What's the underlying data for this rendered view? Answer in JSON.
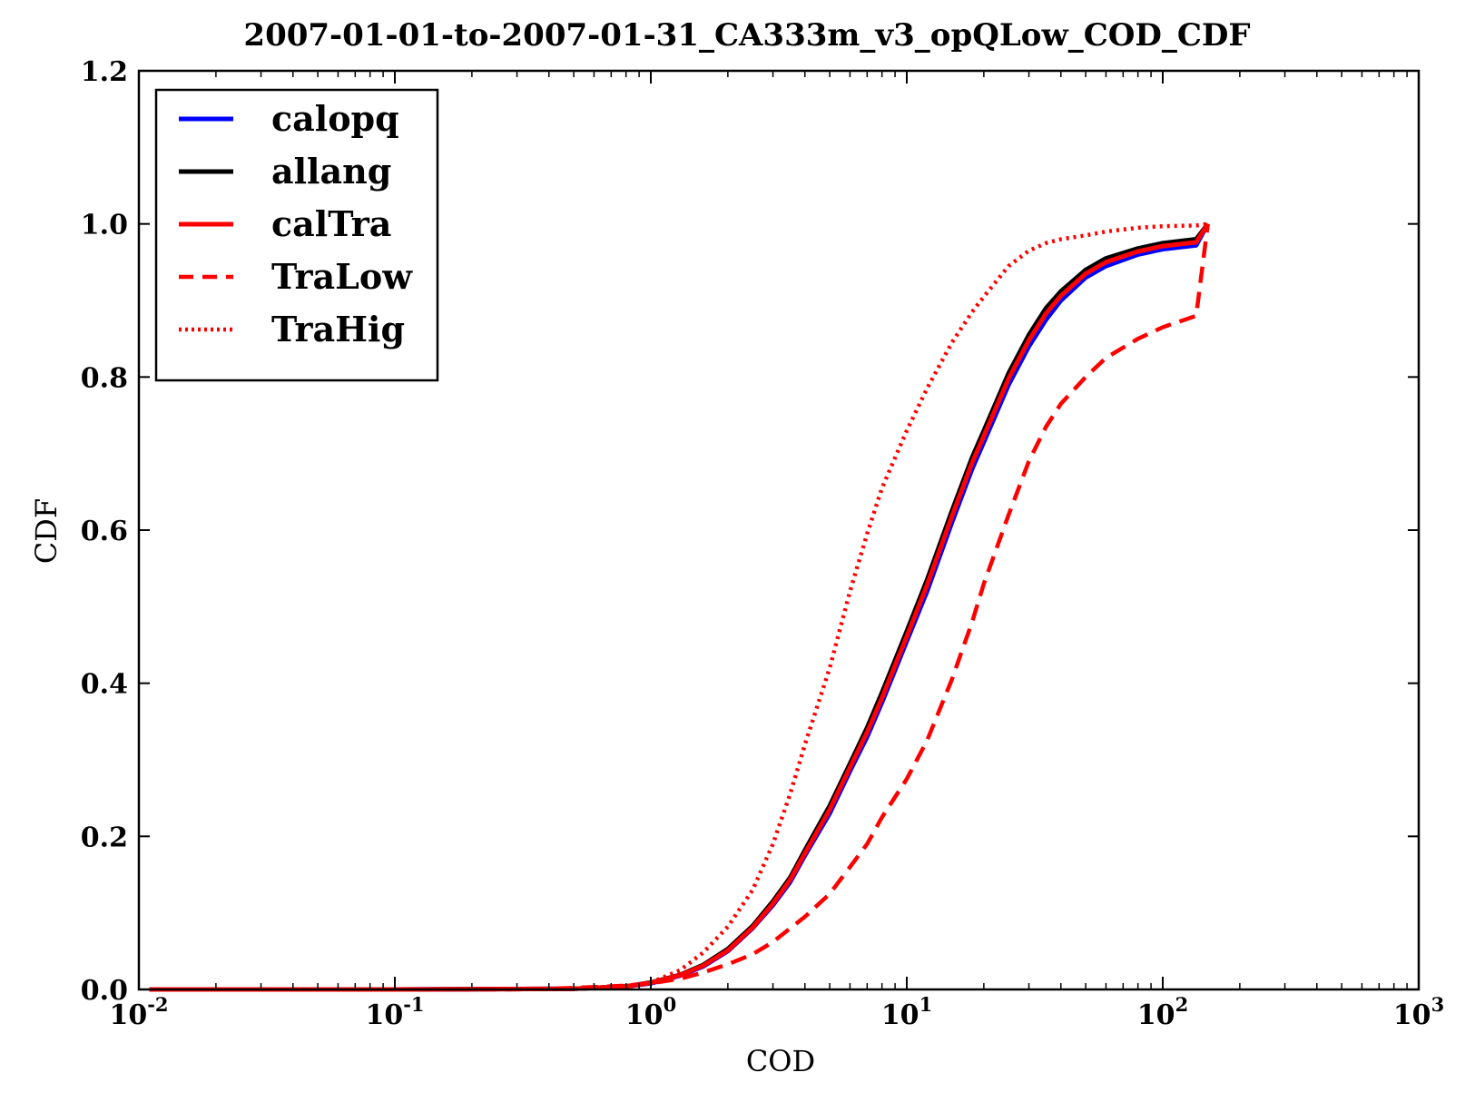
{
  "chart_data": {
    "type": "line",
    "title": "2007-01-01-to-2007-01-31_CA333m_v3_opQLow_COD_CDF",
    "xlabel": "COD",
    "ylabel": "CDF",
    "xscale": "log",
    "xlim": [
      0.01,
      1000
    ],
    "ylim": [
      0.0,
      1.2
    ],
    "grid": false,
    "legend_position": "top-left",
    "x_ticks": [
      {
        "value": 0.01,
        "base": "10",
        "exp": "-2"
      },
      {
        "value": 0.1,
        "base": "10",
        "exp": "-1"
      },
      {
        "value": 1,
        "base": "10",
        "exp": "0"
      },
      {
        "value": 10,
        "base": "10",
        "exp": "1"
      },
      {
        "value": 100,
        "base": "10",
        "exp": "2"
      },
      {
        "value": 1000,
        "base": "10",
        "exp": "3"
      }
    ],
    "y_ticks": [
      {
        "value": 0.0,
        "label": "0.0"
      },
      {
        "value": 0.2,
        "label": "0.2"
      },
      {
        "value": 0.4,
        "label": "0.4"
      },
      {
        "value": 0.6,
        "label": "0.6"
      },
      {
        "value": 0.8,
        "label": "0.8"
      },
      {
        "value": 1.0,
        "label": "1.0"
      },
      {
        "value": 1.2,
        "label": "1.2"
      }
    ],
    "series": [
      {
        "name": "calopq",
        "color": "#0000ff",
        "style": "solid",
        "points": [
          [
            0.011,
            0.0
          ],
          [
            0.1,
            0.0
          ],
          [
            0.5,
            0.001
          ],
          [
            0.8,
            0.004
          ],
          [
            1.0,
            0.008
          ],
          [
            1.3,
            0.018
          ],
          [
            1.6,
            0.03
          ],
          [
            2.0,
            0.05
          ],
          [
            2.5,
            0.08
          ],
          [
            3.0,
            0.11
          ],
          [
            3.5,
            0.14
          ],
          [
            4.0,
            0.175
          ],
          [
            5.0,
            0.23
          ],
          [
            6.0,
            0.285
          ],
          [
            7.0,
            0.33
          ],
          [
            8.0,
            0.375
          ],
          [
            10.0,
            0.455
          ],
          [
            12.0,
            0.52
          ],
          [
            15.0,
            0.61
          ],
          [
            18.0,
            0.68
          ],
          [
            20.0,
            0.715
          ],
          [
            25.0,
            0.79
          ],
          [
            30.0,
            0.84
          ],
          [
            35.0,
            0.875
          ],
          [
            40.0,
            0.9
          ],
          [
            50.0,
            0.93
          ],
          [
            60.0,
            0.945
          ],
          [
            80.0,
            0.96
          ],
          [
            100.0,
            0.967
          ],
          [
            135.0,
            0.972
          ],
          [
            150.0,
            1.0
          ]
        ]
      },
      {
        "name": "allang",
        "color": "#000000",
        "style": "solid",
        "points": [
          [
            0.011,
            0.0
          ],
          [
            0.1,
            0.0
          ],
          [
            0.5,
            0.001
          ],
          [
            0.8,
            0.004
          ],
          [
            1.0,
            0.009
          ],
          [
            1.3,
            0.019
          ],
          [
            1.6,
            0.032
          ],
          [
            2.0,
            0.053
          ],
          [
            2.5,
            0.083
          ],
          [
            3.0,
            0.115
          ],
          [
            3.5,
            0.146
          ],
          [
            4.0,
            0.182
          ],
          [
            5.0,
            0.24
          ],
          [
            6.0,
            0.295
          ],
          [
            7.0,
            0.342
          ],
          [
            8.0,
            0.388
          ],
          [
            10.0,
            0.468
          ],
          [
            12.0,
            0.535
          ],
          [
            15.0,
            0.625
          ],
          [
            18.0,
            0.695
          ],
          [
            20.0,
            0.73
          ],
          [
            25.0,
            0.805
          ],
          [
            30.0,
            0.855
          ],
          [
            35.0,
            0.89
          ],
          [
            40.0,
            0.912
          ],
          [
            50.0,
            0.94
          ],
          [
            60.0,
            0.955
          ],
          [
            80.0,
            0.968
          ],
          [
            100.0,
            0.975
          ],
          [
            135.0,
            0.98
          ],
          [
            150.0,
            1.0
          ]
        ]
      },
      {
        "name": "calTra",
        "color": "#ff0000",
        "style": "solid",
        "points": [
          [
            0.011,
            0.0
          ],
          [
            0.1,
            0.0
          ],
          [
            0.5,
            0.001
          ],
          [
            0.8,
            0.004
          ],
          [
            1.0,
            0.0085
          ],
          [
            1.3,
            0.0185
          ],
          [
            1.6,
            0.031
          ],
          [
            2.0,
            0.051
          ],
          [
            2.5,
            0.081
          ],
          [
            3.0,
            0.112
          ],
          [
            3.5,
            0.143
          ],
          [
            4.0,
            0.178
          ],
          [
            5.0,
            0.235
          ],
          [
            6.0,
            0.29
          ],
          [
            7.0,
            0.336
          ],
          [
            8.0,
            0.381
          ],
          [
            10.0,
            0.461
          ],
          [
            12.0,
            0.528
          ],
          [
            15.0,
            0.618
          ],
          [
            18.0,
            0.688
          ],
          [
            20.0,
            0.723
          ],
          [
            25.0,
            0.798
          ],
          [
            30.0,
            0.848
          ],
          [
            35.0,
            0.883
          ],
          [
            40.0,
            0.906
          ],
          [
            50.0,
            0.935
          ],
          [
            60.0,
            0.95
          ],
          [
            80.0,
            0.964
          ],
          [
            100.0,
            0.971
          ],
          [
            135.0,
            0.976
          ],
          [
            150.0,
            1.0
          ]
        ]
      },
      {
        "name": "TraLow",
        "color": "#ff0000",
        "style": "dashed",
        "points": [
          [
            0.011,
            0.0
          ],
          [
            0.1,
            0.0
          ],
          [
            0.3,
            0.0
          ],
          [
            0.5,
            0.002
          ],
          [
            0.8,
            0.005
          ],
          [
            1.0,
            0.008
          ],
          [
            1.3,
            0.014
          ],
          [
            1.6,
            0.022
          ],
          [
            2.0,
            0.033
          ],
          [
            2.5,
            0.046
          ],
          [
            3.0,
            0.062
          ],
          [
            4.0,
            0.095
          ],
          [
            5.0,
            0.125
          ],
          [
            6.0,
            0.16
          ],
          [
            7.0,
            0.19
          ],
          [
            8.0,
            0.225
          ],
          [
            10.0,
            0.275
          ],
          [
            12.0,
            0.325
          ],
          [
            15.0,
            0.405
          ],
          [
            18.0,
            0.48
          ],
          [
            20.0,
            0.53
          ],
          [
            25.0,
            0.62
          ],
          [
            30.0,
            0.69
          ],
          [
            35.0,
            0.735
          ],
          [
            40.0,
            0.765
          ],
          [
            50.0,
            0.8
          ],
          [
            60.0,
            0.825
          ],
          [
            80.0,
            0.85
          ],
          [
            100.0,
            0.865
          ],
          [
            135.0,
            0.88
          ],
          [
            150.0,
            1.0
          ]
        ]
      },
      {
        "name": "TraHig",
        "color": "#ff0000",
        "style": "dotted",
        "points": [
          [
            0.011,
            0.0
          ],
          [
            0.1,
            0.0
          ],
          [
            0.5,
            0.001
          ],
          [
            0.8,
            0.004
          ],
          [
            1.0,
            0.009
          ],
          [
            1.3,
            0.025
          ],
          [
            1.6,
            0.048
          ],
          [
            2.0,
            0.082
          ],
          [
            2.5,
            0.13
          ],
          [
            3.0,
            0.19
          ],
          [
            3.5,
            0.255
          ],
          [
            4.0,
            0.32
          ],
          [
            5.0,
            0.42
          ],
          [
            6.0,
            0.52
          ],
          [
            7.0,
            0.595
          ],
          [
            8.0,
            0.655
          ],
          [
            10.0,
            0.73
          ],
          [
            12.0,
            0.785
          ],
          [
            15.0,
            0.845
          ],
          [
            18.0,
            0.885
          ],
          [
            20.0,
            0.905
          ],
          [
            25.0,
            0.945
          ],
          [
            30.0,
            0.965
          ],
          [
            35.0,
            0.975
          ],
          [
            40.0,
            0.98
          ],
          [
            50.0,
            0.985
          ],
          [
            60.0,
            0.99
          ],
          [
            80.0,
            0.995
          ],
          [
            100.0,
            0.997
          ],
          [
            135.0,
            0.998
          ],
          [
            150.0,
            1.0
          ]
        ]
      }
    ]
  }
}
